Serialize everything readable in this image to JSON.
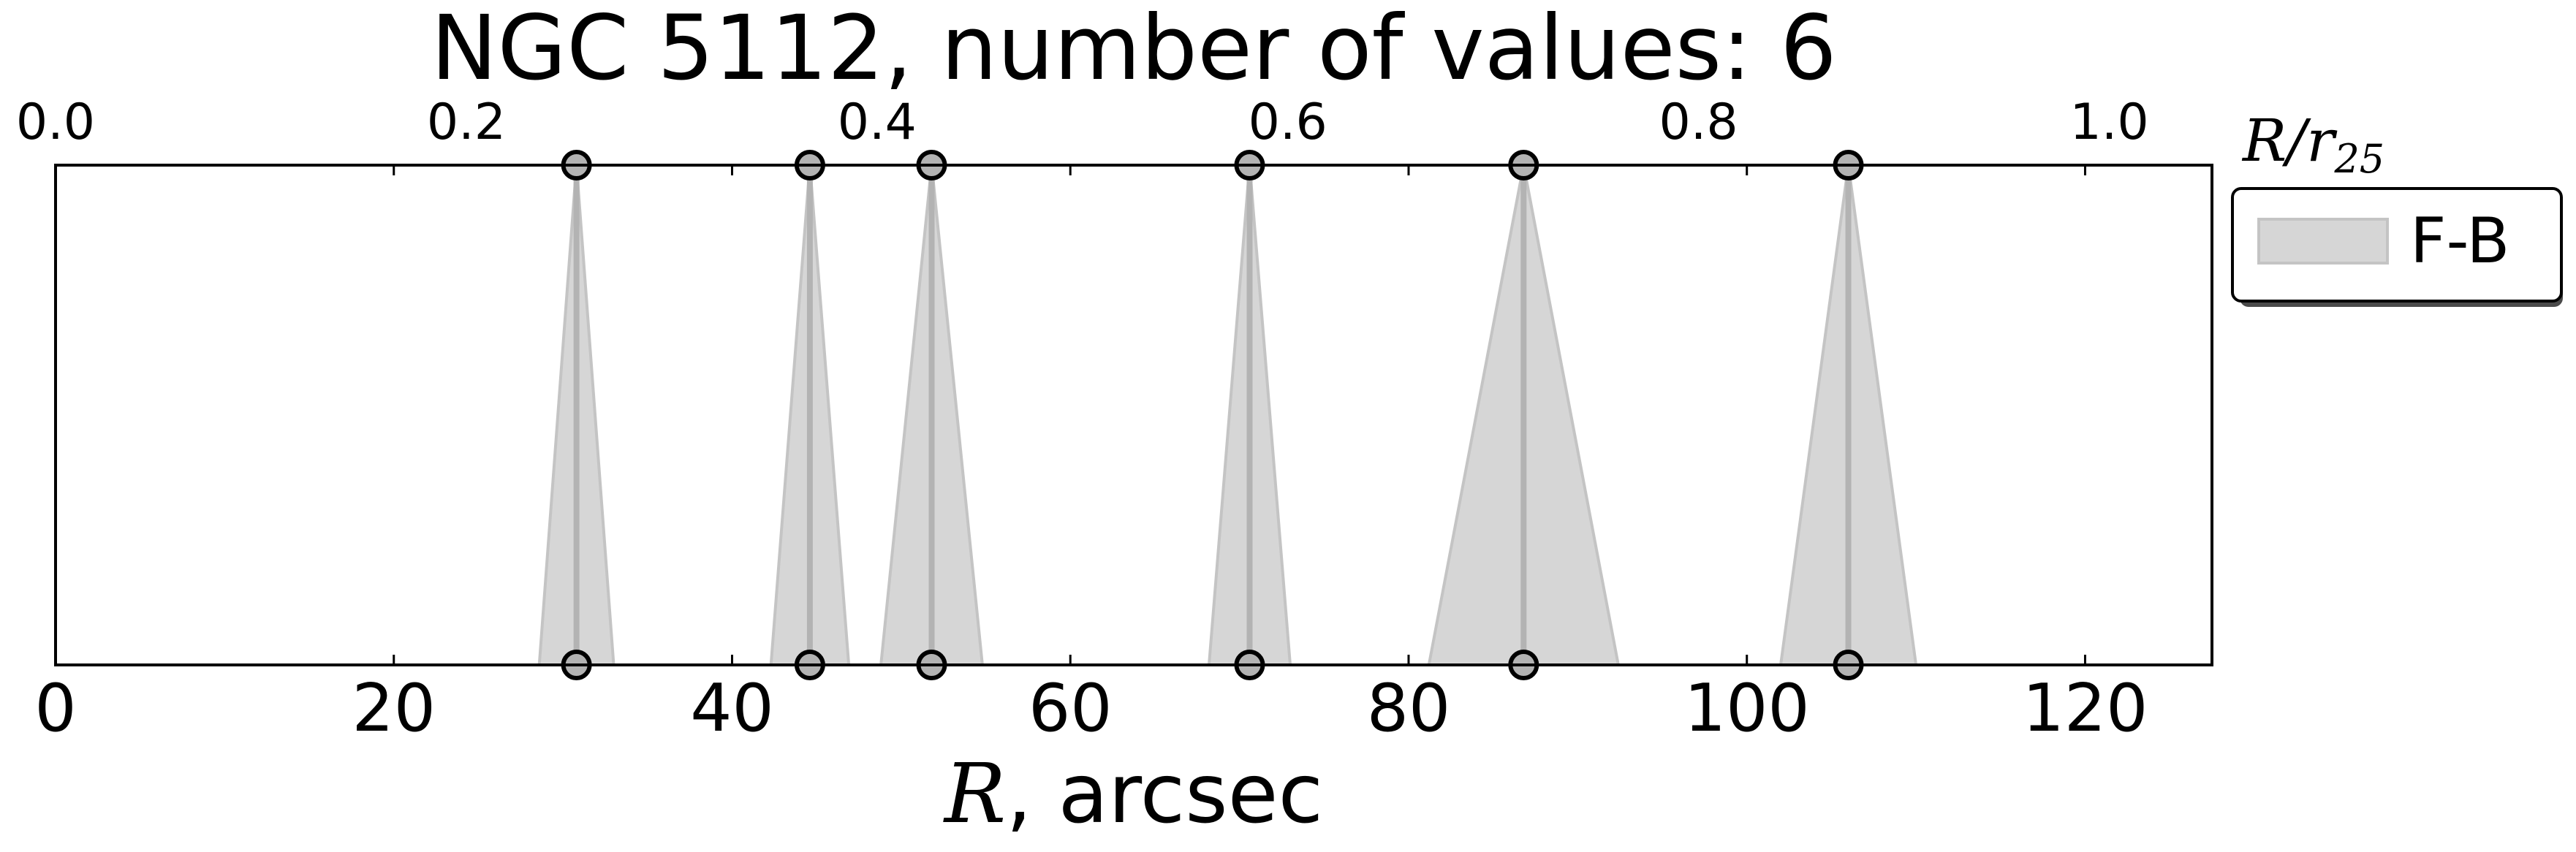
{
  "chart_data": {
    "type": "scatter",
    "title": "NGC 5112, number of values: 6",
    "xlabel_var": "R",
    "xlabel_rest": ", arcsec",
    "top_axis_label": {
      "var": "R/r",
      "sub": "25"
    },
    "xlim": [
      0,
      127.5
    ],
    "top_xlim": [
      0,
      1.05
    ],
    "x_ticks": [
      0,
      20,
      40,
      60,
      80,
      100,
      120
    ],
    "x_tick_labels": [
      "0",
      "20",
      "40",
      "60",
      "80",
      "100",
      "120"
    ],
    "top_ticks": [
      0.0,
      0.2,
      0.4,
      0.6,
      0.8,
      1.0
    ],
    "top_tick_labels": [
      "0.0",
      "0.2",
      "0.4",
      "0.6",
      "0.8",
      "1.0"
    ],
    "grid": false,
    "legend": {
      "placement": "outside-right-top",
      "entries": [
        "F-B"
      ]
    },
    "series": [
      {
        "name": "F-B",
        "color": "#d6d6d6",
        "edge_color": "#c4c4c4",
        "line_color": "#b3b3b3",
        "marker_color": "#b3b3b3",
        "points": [
          {
            "r": 30.8,
            "err": 2.2
          },
          {
            "r": 44.6,
            "err": 2.3
          },
          {
            "r": 51.8,
            "err": 3.0
          },
          {
            "r": 70.6,
            "err": 2.4
          },
          {
            "r": 86.8,
            "err": 5.6
          },
          {
            "r": 106.0,
            "err": 4.0
          }
        ]
      }
    ]
  }
}
